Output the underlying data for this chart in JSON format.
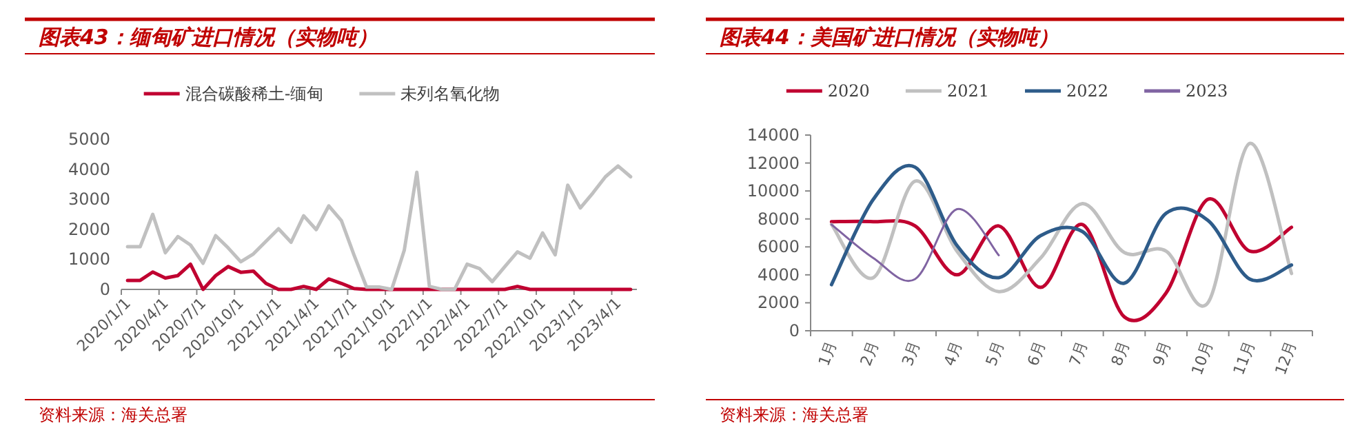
{
  "chart_data": [
    {
      "type": "line",
      "title": "图表43：缅甸矿进口情况（实物吨）",
      "categories": [
        "2020/1/1",
        null,
        null,
        "2020/4/1",
        null,
        null,
        "2020/7/1",
        null,
        null,
        "2020/10/1",
        null,
        null,
        "2021/1/1",
        null,
        null,
        "2021/4/1",
        null,
        null,
        "2021/7/1",
        null,
        null,
        "2021/10/1",
        null,
        null,
        "2022/1/1",
        null,
        null,
        "2022/4/1",
        null,
        null,
        "2022/7/1",
        null,
        null,
        "2022/10/1",
        null,
        null,
        "2023/1/1",
        null,
        null,
        "2023/4/1",
        null
      ],
      "series": [
        {
          "name": "混合碳酸稀土-缅甸",
          "color": "#c00030",
          "values": [
            300,
            300,
            580,
            380,
            460,
            840,
            0,
            460,
            760,
            570,
            610,
            200,
            0,
            0,
            100,
            0,
            350,
            200,
            30,
            0,
            0,
            0,
            0,
            0,
            0,
            0,
            0,
            0,
            0,
            0,
            0,
            100,
            0,
            0,
            0,
            0,
            0,
            0,
            0,
            0,
            0
          ]
        },
        {
          "name": "未列名氧化物",
          "color": "#c0c0c0",
          "values": [
            1420,
            1420,
            2500,
            1220,
            1760,
            1480,
            870,
            1790,
            1380,
            920,
            1180,
            1600,
            2020,
            1570,
            2450,
            1990,
            2780,
            2290,
            1150,
            80,
            80,
            0,
            1300,
            3900,
            100,
            0,
            0,
            840,
            690,
            260,
            760,
            1250,
            1040,
            1880,
            1150,
            3470,
            2710,
            3210,
            3750,
            4110,
            3750
          ]
        }
      ],
      "ylim": [
        0,
        5000
      ],
      "yticks": [
        0,
        1000,
        2000,
        3000,
        4000,
        5000
      ],
      "legend": "top",
      "annotations": [
        "资料来源：海关总署"
      ]
    },
    {
      "type": "line",
      "title": "图表44：美国矿进口情况（实物吨）",
      "categories": [
        "1月",
        "2月",
        "3月",
        "4月",
        "5月",
        "6月",
        "7月",
        "8月",
        "9月",
        "10月",
        "11月",
        "12月"
      ],
      "series": [
        {
          "name": "2020",
          "color": "#c00030",
          "values": [
            7800,
            7800,
            7500,
            4000,
            7500,
            3100,
            7600,
            1000,
            2700,
            9400,
            5700,
            7400
          ]
        },
        {
          "name": "2021",
          "color": "#c0c0c0",
          "values": [
            7600,
            3800,
            10700,
            5700,
            2800,
            5200,
            9100,
            5600,
            5700,
            2000,
            13400,
            4100
          ]
        },
        {
          "name": "2022",
          "color": "#2e5c8a",
          "values": [
            3300,
            9400,
            11700,
            6100,
            3800,
            6800,
            7100,
            3400,
            8400,
            7900,
            3700,
            4700
          ]
        },
        {
          "name": "2023",
          "color": "#8064a2",
          "values": [
            7600,
            5200,
            3700,
            8700,
            5400,
            null,
            null,
            null,
            null,
            null,
            null,
            null
          ]
        }
      ],
      "ylim": [
        0,
        14000
      ],
      "yticks": [
        0,
        2000,
        4000,
        6000,
        8000,
        10000,
        12000,
        14000
      ],
      "legend": "top",
      "annotations": [
        "资料来源：海关总署"
      ]
    }
  ]
}
